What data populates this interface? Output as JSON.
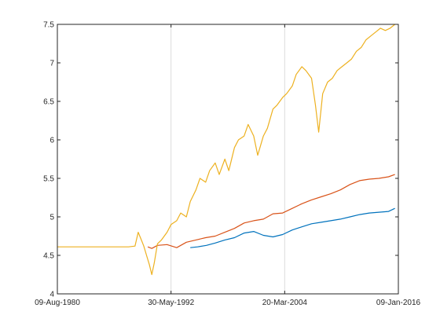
{
  "chart_data": {
    "type": "line",
    "title": "",
    "xlabel": "",
    "ylabel": "",
    "xlim": [
      "1980-08-09",
      "2016-01-09"
    ],
    "ylim": [
      4,
      7.5
    ],
    "x_ticks": [
      "09-Aug-1980",
      "30-May-1992",
      "20-Mar-2004",
      "09-Jan-2016"
    ],
    "x_tick_dates": [
      "1980-08-09",
      "1992-05-30",
      "2004-03-20",
      "2016-01-09"
    ],
    "y_ticks": [
      "4",
      "4.5",
      "5",
      "5.5",
      "6",
      "6.5",
      "7",
      "7.5"
    ],
    "y_tick_values": [
      4,
      4.5,
      5,
      5.5,
      6,
      6.5,
      7,
      7.5
    ],
    "grid": "x-only",
    "colors": {
      "series1": "#0072BD",
      "series2": "#D95319",
      "series3": "#EDB120",
      "axis": "#262626",
      "grid": "#dcdcdc"
    },
    "series": [
      {
        "color": "#0072BD",
        "points": [
          [
            "1994-06-01",
            4.6
          ],
          [
            "1995-03-01",
            4.61
          ],
          [
            "1996-02-01",
            4.63
          ],
          [
            "1997-01-01",
            4.66
          ],
          [
            "1998-01-01",
            4.7
          ],
          [
            "1999-01-01",
            4.73
          ],
          [
            "2000-01-01",
            4.79
          ],
          [
            "2001-01-01",
            4.81
          ],
          [
            "2002-01-01",
            4.76
          ],
          [
            "2003-01-01",
            4.74
          ],
          [
            "2004-01-01",
            4.77
          ],
          [
            "2005-01-01",
            4.83
          ],
          [
            "2006-01-01",
            4.87
          ],
          [
            "2007-01-01",
            4.91
          ],
          [
            "2008-01-01",
            4.93
          ],
          [
            "2009-01-01",
            4.95
          ],
          [
            "2010-01-01",
            4.97
          ],
          [
            "2011-01-01",
            5.0
          ],
          [
            "2012-01-01",
            5.03
          ],
          [
            "2013-01-01",
            5.05
          ],
          [
            "2014-01-01",
            5.06
          ],
          [
            "2015-01-01",
            5.07
          ],
          [
            "2015-09-01",
            5.11
          ]
        ]
      },
      {
        "color": "#D95319",
        "points": [
          [
            "1990-01-01",
            4.61
          ],
          [
            "1990-06-01",
            4.59
          ],
          [
            "1991-01-01",
            4.63
          ],
          [
            "1992-01-01",
            4.64
          ],
          [
            "1993-01-01",
            4.6
          ],
          [
            "1994-01-01",
            4.67
          ],
          [
            "1995-01-01",
            4.7
          ],
          [
            "1996-01-01",
            4.73
          ],
          [
            "1997-01-01",
            4.75
          ],
          [
            "1998-01-01",
            4.8
          ],
          [
            "1999-01-01",
            4.85
          ],
          [
            "2000-01-01",
            4.92
          ],
          [
            "2001-01-01",
            4.95
          ],
          [
            "2002-01-01",
            4.97
          ],
          [
            "2003-01-01",
            5.04
          ],
          [
            "2004-01-01",
            5.05
          ],
          [
            "2005-01-01",
            5.11
          ],
          [
            "2006-01-01",
            5.17
          ],
          [
            "2007-01-01",
            5.22
          ],
          [
            "2008-01-01",
            5.26
          ],
          [
            "2009-01-01",
            5.3
          ],
          [
            "2010-01-01",
            5.35
          ],
          [
            "2011-01-01",
            5.42
          ],
          [
            "2012-01-01",
            5.47
          ],
          [
            "2013-01-01",
            5.49
          ],
          [
            "2014-01-01",
            5.5
          ],
          [
            "2015-01-01",
            5.52
          ],
          [
            "2015-09-01",
            5.55
          ]
        ]
      },
      {
        "color": "#EDB120",
        "points": [
          [
            "1980-08-09",
            4.61
          ],
          [
            "1983-01-01",
            4.61
          ],
          [
            "1986-01-01",
            4.61
          ],
          [
            "1988-01-01",
            4.61
          ],
          [
            "1988-09-01",
            4.62
          ],
          [
            "1989-01-01",
            4.8
          ],
          [
            "1989-05-01",
            4.7
          ],
          [
            "1989-08-01",
            4.62
          ],
          [
            "1989-12-01",
            4.48
          ],
          [
            "1990-03-01",
            4.38
          ],
          [
            "1990-06-01",
            4.25
          ],
          [
            "1990-09-01",
            4.4
          ],
          [
            "1991-01-01",
            4.65
          ],
          [
            "1991-06-01",
            4.7
          ],
          [
            "1992-01-01",
            4.8
          ],
          [
            "1992-06-01",
            4.9
          ],
          [
            "1993-01-01",
            4.95
          ],
          [
            "1993-06-01",
            5.05
          ],
          [
            "1994-01-01",
            5.0
          ],
          [
            "1994-06-01",
            5.2
          ],
          [
            "1995-01-01",
            5.35
          ],
          [
            "1995-06-01",
            5.5
          ],
          [
            "1996-01-01",
            5.45
          ],
          [
            "1996-06-01",
            5.6
          ],
          [
            "1997-01-01",
            5.7
          ],
          [
            "1997-06-01",
            5.55
          ],
          [
            "1998-01-01",
            5.75
          ],
          [
            "1998-06-01",
            5.6
          ],
          [
            "1999-01-01",
            5.9
          ],
          [
            "1999-06-01",
            6.0
          ],
          [
            "2000-01-01",
            6.05
          ],
          [
            "2000-06-01",
            6.2
          ],
          [
            "2001-01-01",
            6.05
          ],
          [
            "2001-06-01",
            5.8
          ],
          [
            "2002-01-01",
            6.05
          ],
          [
            "2002-06-01",
            6.15
          ],
          [
            "2003-01-01",
            6.4
          ],
          [
            "2003-06-01",
            6.45
          ],
          [
            "2004-01-01",
            6.55
          ],
          [
            "2004-06-01",
            6.6
          ],
          [
            "2005-01-01",
            6.7
          ],
          [
            "2005-06-01",
            6.85
          ],
          [
            "2006-01-01",
            6.95
          ],
          [
            "2006-06-01",
            6.9
          ],
          [
            "2007-01-01",
            6.8
          ],
          [
            "2007-06-01",
            6.45
          ],
          [
            "2007-10-01",
            6.1
          ],
          [
            "2008-03-01",
            6.6
          ],
          [
            "2008-09-01",
            6.75
          ],
          [
            "2009-03-01",
            6.8
          ],
          [
            "2009-09-01",
            6.9
          ],
          [
            "2010-03-01",
            6.95
          ],
          [
            "2010-09-01",
            7.0
          ],
          [
            "2011-03-01",
            7.05
          ],
          [
            "2011-09-01",
            7.15
          ],
          [
            "2012-03-01",
            7.2
          ],
          [
            "2012-09-01",
            7.3
          ],
          [
            "2013-03-01",
            7.35
          ],
          [
            "2013-09-01",
            7.4
          ],
          [
            "2014-03-01",
            7.45
          ],
          [
            "2014-09-01",
            7.42
          ],
          [
            "2015-03-01",
            7.45
          ],
          [
            "2015-09-01",
            7.5
          ]
        ]
      }
    ]
  }
}
